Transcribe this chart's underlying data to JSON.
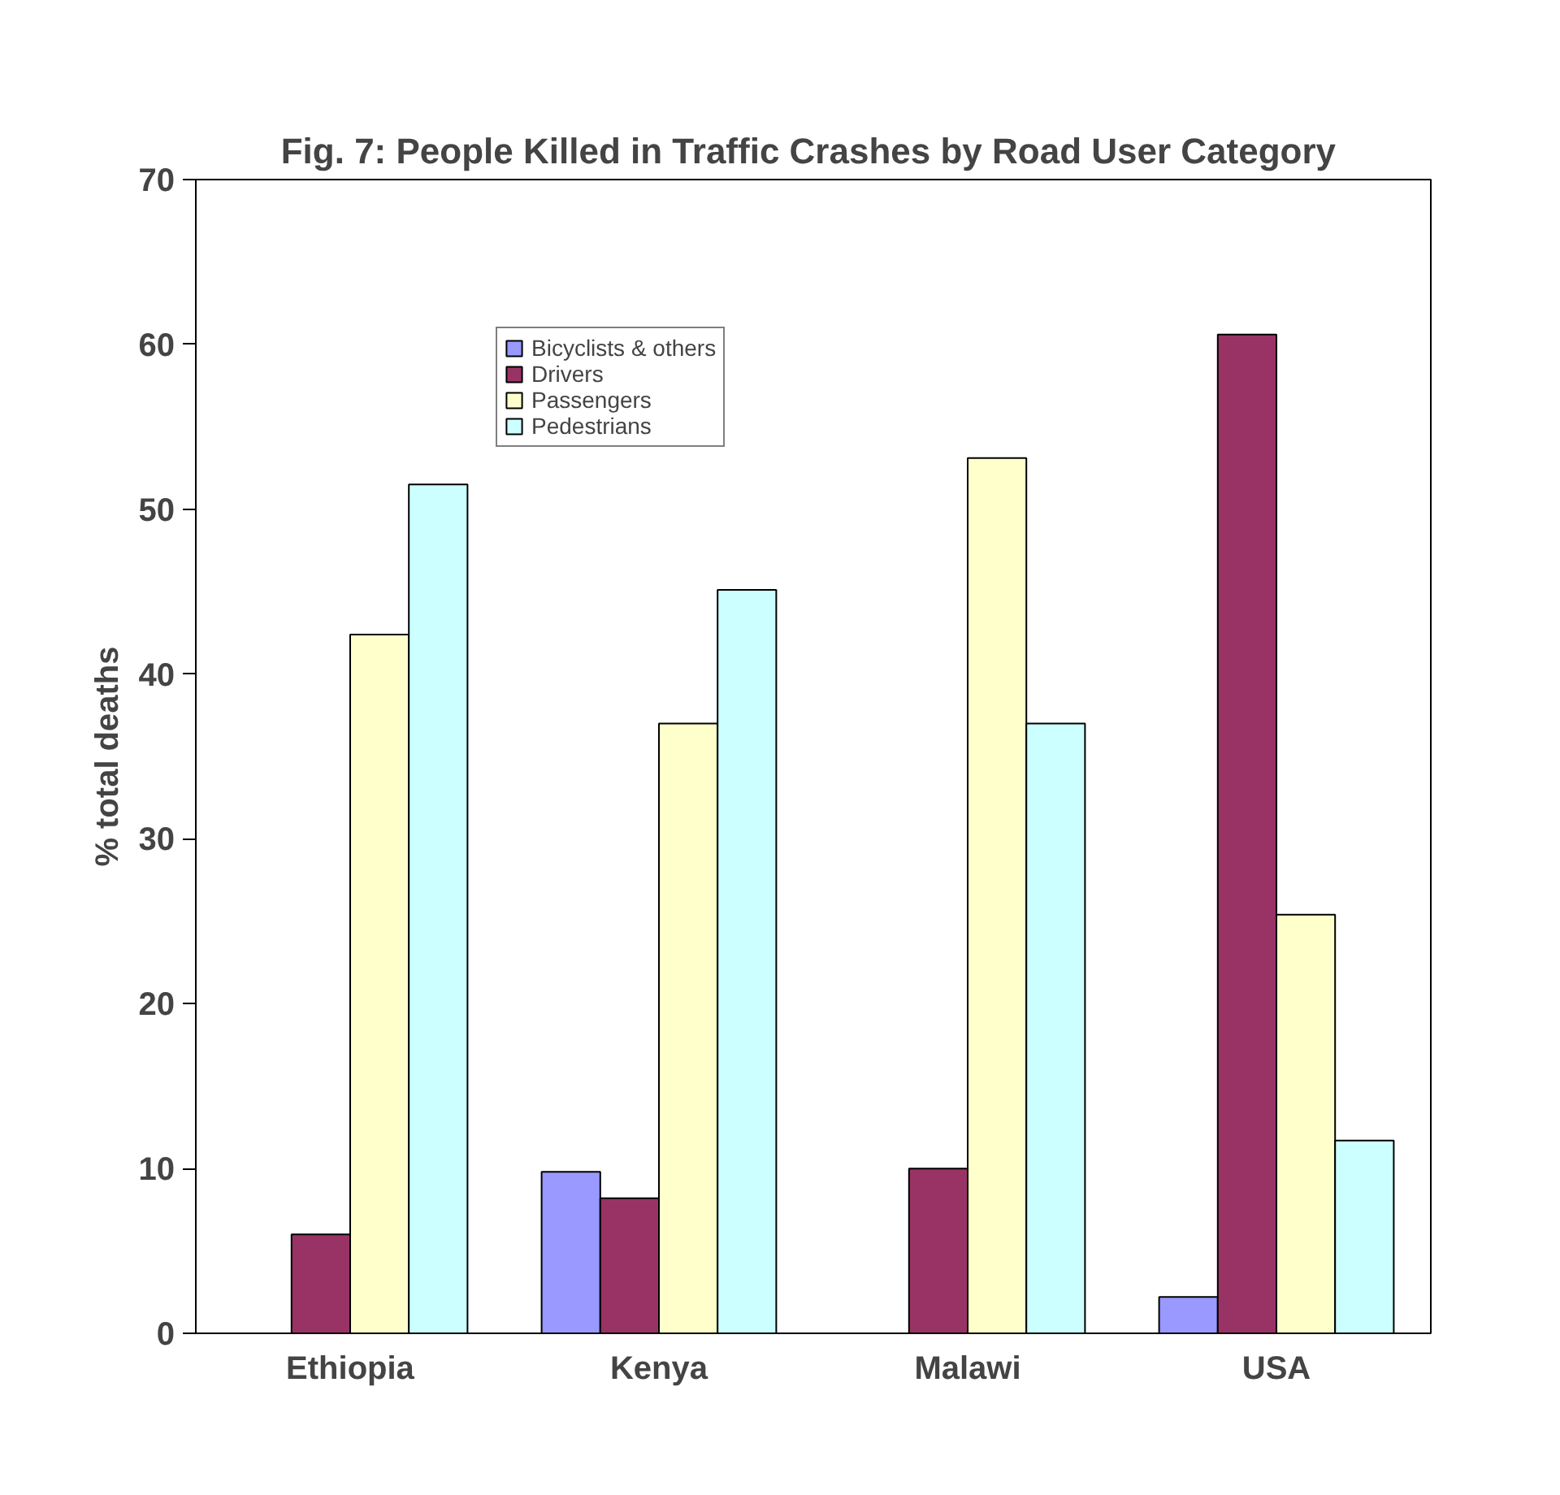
{
  "chart_data": {
    "type": "bar",
    "title": "Fig. 7: People Killed in Traffic Crashes by  Road User Category",
    "ylabel": "% total deaths",
    "categories": [
      "Ethiopia",
      "Kenya",
      "Malawi",
      "USA"
    ],
    "series": [
      {
        "name": "Bicyclists & others",
        "color": "#9999ff",
        "values": [
          null,
          9.8,
          null,
          2.2
        ]
      },
      {
        "name": "Drivers",
        "color": "#993366",
        "values": [
          6.0,
          8.2,
          10.0,
          60.6
        ]
      },
      {
        "name": "Passengers",
        "color": "#ffffcc",
        "values": [
          42.4,
          37.0,
          53.1,
          25.4
        ]
      },
      {
        "name": "Pedestrians",
        "color": "#ccffff",
        "values": [
          51.5,
          45.1,
          37.0,
          11.7
        ]
      }
    ],
    "ylim": [
      0,
      70
    ],
    "yticks": [
      0,
      10,
      20,
      30,
      40,
      50,
      60,
      70
    ],
    "grid": false,
    "legend": "top"
  }
}
